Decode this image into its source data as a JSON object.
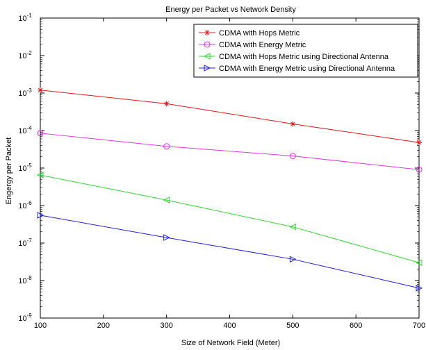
{
  "chart_data": {
    "type": "line",
    "title": "Energy per Packet vs  Network Density",
    "xlabel": "Size of Network Field (Meter)",
    "ylabel": "Engergy per Packet",
    "xlim": [
      100,
      700
    ],
    "ylim": [
      1e-09,
      0.1
    ],
    "yscale": "log",
    "grid": false,
    "legend_position": "top-right",
    "x_ticks": [
      "100",
      "200",
      "300",
      "400",
      "500",
      "600",
      "700"
    ],
    "y_ticks": [
      {
        "base": "10",
        "exp": "-9"
      },
      {
        "base": "10",
        "exp": "-8"
      },
      {
        "base": "10",
        "exp": "-7"
      },
      {
        "base": "10",
        "exp": "-6"
      },
      {
        "base": "10",
        "exp": "-5"
      },
      {
        "base": "10",
        "exp": "-4"
      },
      {
        "base": "10",
        "exp": "-3"
      },
      {
        "base": "10",
        "exp": "-2"
      },
      {
        "base": "10",
        "exp": "-1"
      }
    ],
    "x": [
      100,
      300,
      500,
      700
    ],
    "series": [
      {
        "name": "CDMA with Hops Metric",
        "color": "#e8131c",
        "marker": "star",
        "values": [
          0.0012,
          0.00052,
          0.00015,
          4.8e-05
        ]
      },
      {
        "name": "CDMA with Energy Metric",
        "color": "#e632e6",
        "marker": "circle",
        "values": [
          8.5e-05,
          3.8e-05,
          2.1e-05,
          9.1e-06
        ]
      },
      {
        "name": "CDMA with Hops Metric using Directional Antenna",
        "color": "#2ed82e",
        "marker": "triangle-left",
        "values": [
          6.5e-06,
          1.4e-06,
          2.7e-07,
          3e-08
        ]
      },
      {
        "name": "CDMA with Energy Metric using Directional Antenna",
        "color": "#2020e6",
        "marker": "triangle-right",
        "values": [
          5.5e-07,
          1.4e-07,
          3.7e-08,
          6.3e-09
        ]
      }
    ]
  }
}
